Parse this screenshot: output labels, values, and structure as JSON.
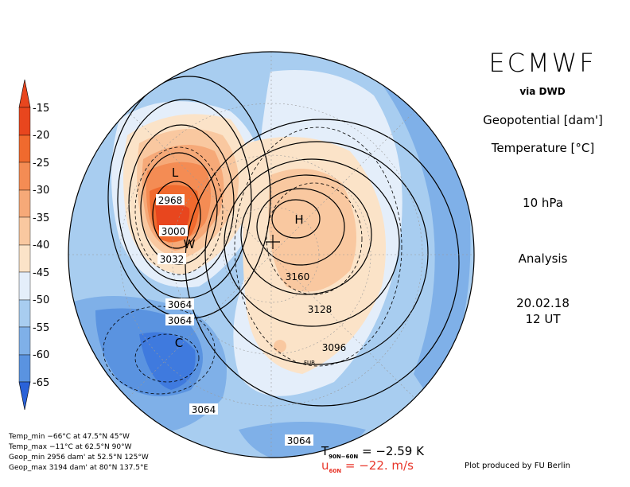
{
  "header": {
    "title": "ECMWF",
    "source": "via DWD"
  },
  "parameters": {
    "field1": "Geopotential [dam']",
    "field2": "Temperature [°C]",
    "level": "10 hPa",
    "type": "Analysis",
    "date": "20.02.18",
    "time": "12 UT"
  },
  "colorbar": {
    "labels": [
      "-15",
      "-20",
      "-25",
      "-30",
      "-35",
      "-40",
      "-45",
      "-50",
      "-55",
      "-60",
      "-65"
    ],
    "colors": [
      "#e8461e",
      "#f06a2e",
      "#f48c54",
      "#f6a978",
      "#f9c8a0",
      "#fbe3c8",
      "#e4eefa",
      "#a8cdf0",
      "#7fb0e8",
      "#5a93e0",
      "#3f7ade",
      "#2a62d8"
    ]
  },
  "map": {
    "contour_labels": [
      "2968",
      "3000",
      "3032",
      "3064",
      "3064",
      "3160",
      "3128",
      "3096",
      "3064",
      "3064"
    ],
    "markers": [
      "L",
      "W",
      "H",
      "C"
    ],
    "small_label": "FUB"
  },
  "stats": {
    "temp_min": "Temp_min −66°C at 47.5°N 45°W",
    "temp_max": "Temp_max −11°C at 62.5°N 90°W",
    "geop_min": "Geop_min 2956 dam' at 52.5°N 125°W",
    "geop_max": "Geop_max 3194 dam' at 80°N 137.5°E"
  },
  "diagnostics": {
    "t_label": "T",
    "t_sub": "90N−60N",
    "t_value": "= −2.59 K",
    "u_label": "u",
    "u_sub": "60N",
    "u_value": "= −22. m/s"
  },
  "footer": {
    "credit": "Plot produced by FU Berlin"
  }
}
